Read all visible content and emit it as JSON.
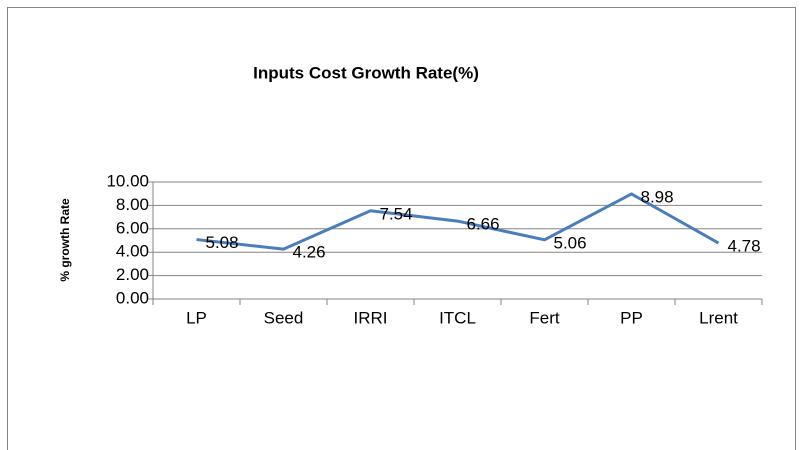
{
  "chart_data": {
    "type": "line",
    "title": "Inputs Cost Growth Rate(%)",
    "y_label": "% growth Rate",
    "categories": [
      "LP",
      "Seed",
      "IRRI",
      "ITCL",
      "Fert",
      "PP",
      "Lrent"
    ],
    "values": [
      5.08,
      4.26,
      7.54,
      6.66,
      5.06,
      8.98,
      4.78
    ],
    "color": "#4a7ebb",
    "ylim": [
      0,
      10
    ],
    "yticks": [
      {
        "value": 0,
        "label": "0.00"
      },
      {
        "value": 2,
        "label": "2.00"
      },
      {
        "value": 4,
        "label": "4.00"
      },
      {
        "value": 6,
        "label": "6.00"
      },
      {
        "value": 8,
        "label": "8.00"
      },
      {
        "value": 10,
        "label": "10.00"
      }
    ],
    "grid": true
  }
}
